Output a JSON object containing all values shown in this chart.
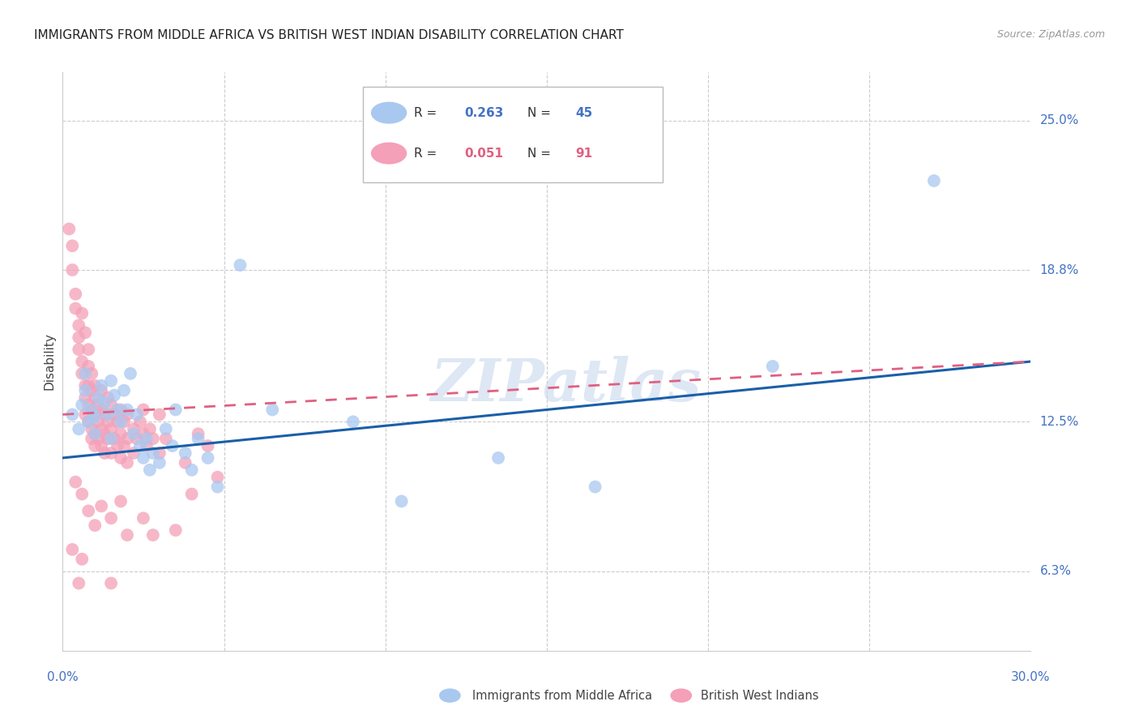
{
  "title": "IMMIGRANTS FROM MIDDLE AFRICA VS BRITISH WEST INDIAN DISABILITY CORRELATION CHART",
  "source": "Source: ZipAtlas.com",
  "ylabel": "Disability",
  "yticks": [
    "6.3%",
    "12.5%",
    "18.8%",
    "25.0%"
  ],
  "ytick_vals": [
    0.063,
    0.125,
    0.188,
    0.25
  ],
  "xtick_labels": [
    "0.0%",
    "30.0%"
  ],
  "xtick_vals": [
    0.0,
    0.3
  ],
  "xlim": [
    0.0,
    0.3
  ],
  "ylim": [
    0.03,
    0.27
  ],
  "color_blue": "#A8C8F0",
  "color_pink": "#F4A0B8",
  "color_blue_line": "#1A5FA8",
  "color_pink_line": "#E06080",
  "watermark": "ZIPatlas",
  "blue_scatter": [
    [
      0.003,
      0.128
    ],
    [
      0.005,
      0.122
    ],
    [
      0.006,
      0.132
    ],
    [
      0.007,
      0.138
    ],
    [
      0.007,
      0.145
    ],
    [
      0.008,
      0.125
    ],
    [
      0.009,
      0.13
    ],
    [
      0.01,
      0.127
    ],
    [
      0.01,
      0.12
    ],
    [
      0.011,
      0.135
    ],
    [
      0.012,
      0.14
    ],
    [
      0.013,
      0.133
    ],
    [
      0.014,
      0.128
    ],
    [
      0.015,
      0.142
    ],
    [
      0.015,
      0.118
    ],
    [
      0.016,
      0.136
    ],
    [
      0.017,
      0.13
    ],
    [
      0.018,
      0.125
    ],
    [
      0.019,
      0.138
    ],
    [
      0.02,
      0.13
    ],
    [
      0.021,
      0.145
    ],
    [
      0.022,
      0.12
    ],
    [
      0.023,
      0.128
    ],
    [
      0.024,
      0.115
    ],
    [
      0.025,
      0.11
    ],
    [
      0.026,
      0.118
    ],
    [
      0.027,
      0.105
    ],
    [
      0.028,
      0.112
    ],
    [
      0.03,
      0.108
    ],
    [
      0.032,
      0.122
    ],
    [
      0.034,
      0.115
    ],
    [
      0.035,
      0.13
    ],
    [
      0.038,
      0.112
    ],
    [
      0.04,
      0.105
    ],
    [
      0.042,
      0.118
    ],
    [
      0.045,
      0.11
    ],
    [
      0.048,
      0.098
    ],
    [
      0.055,
      0.19
    ],
    [
      0.065,
      0.13
    ],
    [
      0.09,
      0.125
    ],
    [
      0.105,
      0.092
    ],
    [
      0.135,
      0.11
    ],
    [
      0.165,
      0.098
    ],
    [
      0.22,
      0.148
    ],
    [
      0.27,
      0.225
    ]
  ],
  "pink_scatter": [
    [
      0.002,
      0.205
    ],
    [
      0.003,
      0.198
    ],
    [
      0.003,
      0.188
    ],
    [
      0.004,
      0.178
    ],
    [
      0.004,
      0.172
    ],
    [
      0.005,
      0.165
    ],
    [
      0.005,
      0.16
    ],
    [
      0.005,
      0.155
    ],
    [
      0.006,
      0.17
    ],
    [
      0.006,
      0.15
    ],
    [
      0.006,
      0.145
    ],
    [
      0.007,
      0.162
    ],
    [
      0.007,
      0.14
    ],
    [
      0.007,
      0.135
    ],
    [
      0.007,
      0.128
    ],
    [
      0.008,
      0.155
    ],
    [
      0.008,
      0.148
    ],
    [
      0.008,
      0.14
    ],
    [
      0.008,
      0.132
    ],
    [
      0.008,
      0.125
    ],
    [
      0.009,
      0.145
    ],
    [
      0.009,
      0.138
    ],
    [
      0.009,
      0.13
    ],
    [
      0.009,
      0.122
    ],
    [
      0.009,
      0.118
    ],
    [
      0.01,
      0.14
    ],
    [
      0.01,
      0.135
    ],
    [
      0.01,
      0.128
    ],
    [
      0.01,
      0.12
    ],
    [
      0.01,
      0.115
    ],
    [
      0.011,
      0.132
    ],
    [
      0.011,
      0.125
    ],
    [
      0.011,
      0.118
    ],
    [
      0.012,
      0.138
    ],
    [
      0.012,
      0.13
    ],
    [
      0.012,
      0.122
    ],
    [
      0.012,
      0.115
    ],
    [
      0.013,
      0.128
    ],
    [
      0.013,
      0.12
    ],
    [
      0.013,
      0.112
    ],
    [
      0.014,
      0.135
    ],
    [
      0.014,
      0.125
    ],
    [
      0.014,
      0.118
    ],
    [
      0.015,
      0.132
    ],
    [
      0.015,
      0.122
    ],
    [
      0.015,
      0.112
    ],
    [
      0.016,
      0.128
    ],
    [
      0.016,
      0.118
    ],
    [
      0.017,
      0.125
    ],
    [
      0.017,
      0.115
    ],
    [
      0.018,
      0.13
    ],
    [
      0.018,
      0.12
    ],
    [
      0.018,
      0.11
    ],
    [
      0.019,
      0.125
    ],
    [
      0.019,
      0.115
    ],
    [
      0.02,
      0.128
    ],
    [
      0.02,
      0.118
    ],
    [
      0.02,
      0.108
    ],
    [
      0.022,
      0.122
    ],
    [
      0.022,
      0.112
    ],
    [
      0.023,
      0.118
    ],
    [
      0.024,
      0.125
    ],
    [
      0.025,
      0.13
    ],
    [
      0.025,
      0.12
    ],
    [
      0.026,
      0.115
    ],
    [
      0.027,
      0.122
    ],
    [
      0.028,
      0.118
    ],
    [
      0.03,
      0.128
    ],
    [
      0.03,
      0.112
    ],
    [
      0.032,
      0.118
    ],
    [
      0.035,
      0.08
    ],
    [
      0.038,
      0.108
    ],
    [
      0.04,
      0.095
    ],
    [
      0.042,
      0.12
    ],
    [
      0.045,
      0.115
    ],
    [
      0.048,
      0.102
    ],
    [
      0.005,
      0.058
    ],
    [
      0.015,
      0.058
    ],
    [
      0.004,
      0.1
    ],
    [
      0.006,
      0.095
    ],
    [
      0.008,
      0.088
    ],
    [
      0.01,
      0.082
    ],
    [
      0.012,
      0.09
    ],
    [
      0.015,
      0.085
    ],
    [
      0.018,
      0.092
    ],
    [
      0.02,
      0.078
    ],
    [
      0.025,
      0.085
    ],
    [
      0.028,
      0.078
    ],
    [
      0.003,
      0.072
    ],
    [
      0.006,
      0.068
    ]
  ],
  "blue_line_x": [
    0.0,
    0.3
  ],
  "blue_line_y": [
    0.11,
    0.15
  ],
  "pink_line_x": [
    0.0,
    0.3
  ],
  "pink_line_y": [
    0.128,
    0.15
  ]
}
